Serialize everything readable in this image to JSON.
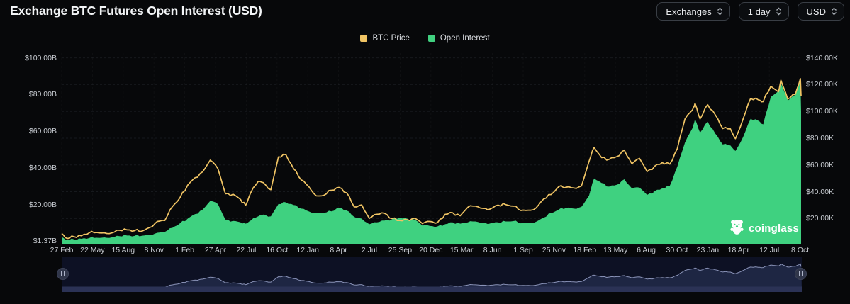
{
  "header": {
    "title": "Exchange BTC Futures Open Interest (USD)",
    "controls": [
      {
        "label": "Exchanges"
      },
      {
        "label": "1 day"
      },
      {
        "label": "USD"
      }
    ]
  },
  "legend": {
    "items": [
      {
        "label": "BTC Price",
        "color": "#F0C464"
      },
      {
        "label": "Open Interest",
        "color": "#41D080"
      }
    ]
  },
  "watermark": {
    "text": "coinglass"
  },
  "colors": {
    "background": "#07080a",
    "btc_price_line": "#F0C464",
    "open_interest_fill": "#3FD180",
    "grid_line": "#24272d",
    "axis_text": "#c8ccd2",
    "navigator_bg": "#0d1124",
    "navigator_fill": "#1e2643",
    "navigator_line": "#8a93b8",
    "navigator_scrollbar": "#2b3255"
  },
  "chart_data": {
    "type": "area",
    "title": "Exchange BTC Futures Open Interest (USD)",
    "legend_position": "top-center",
    "grid": "horizontal-dashed",
    "left_axis": {
      "unit": "USD billions",
      "min": 0,
      "max": 103,
      "tick_labels": [
        "$100.00B",
        "$80.00B",
        "$60.00B",
        "$40.00B",
        "$20.00B",
        "$1.37B"
      ],
      "tick_values": [
        100,
        80,
        60,
        40,
        20,
        1.37
      ]
    },
    "right_axis": {
      "unit": "USD thousands",
      "min": 0,
      "max": 145,
      "tick_labels": [
        "$140.00K",
        "$120.00K",
        "$100.00K",
        "$80.00K",
        "$60.00K",
        "$40.00K",
        "$20.00K"
      ],
      "tick_values": [
        140,
        120,
        100,
        80,
        60,
        40,
        20
      ]
    },
    "x_ticks": [
      "27 Feb",
      "22 May",
      "15 Aug",
      "8 Nov",
      "1 Feb",
      "27 Apr",
      "22 Jul",
      "16 Oct",
      "12 Jan",
      "8 Apr",
      "2 Jul",
      "25 Sep",
      "20 Dec",
      "15 Mar",
      "8 Jun",
      "1 Sep",
      "25 Nov",
      "18 Feb",
      "13 May",
      "6 Aug",
      "30 Oct",
      "23 Jan",
      "18 Apr",
      "12 Jul",
      "8 Oct"
    ],
    "dates": [
      "2020-02-27",
      "2020-03-13",
      "2020-04-01",
      "2020-04-22",
      "2020-05-13",
      "2020-06-03",
      "2020-06-24",
      "2020-07-15",
      "2020-08-05",
      "2020-08-26",
      "2020-09-16",
      "2020-10-07",
      "2020-10-28",
      "2020-11-18",
      "2020-12-09",
      "2020-12-30",
      "2021-01-20",
      "2021-02-10",
      "2021-03-03",
      "2021-03-24",
      "2021-04-14",
      "2021-05-05",
      "2021-05-26",
      "2021-06-16",
      "2021-07-07",
      "2021-07-21",
      "2021-08-04",
      "2021-08-25",
      "2021-09-08",
      "2021-09-29",
      "2021-10-20",
      "2021-11-10",
      "2021-12-01",
      "2021-12-22",
      "2022-01-12",
      "2022-02-02",
      "2022-02-23",
      "2022-03-16",
      "2022-04-06",
      "2022-04-27",
      "2022-05-18",
      "2022-06-08",
      "2022-06-29",
      "2022-07-20",
      "2022-08-10",
      "2022-08-31",
      "2022-09-21",
      "2022-10-12",
      "2022-11-02",
      "2022-11-23",
      "2022-12-14",
      "2023-01-04",
      "2023-01-25",
      "2023-02-15",
      "2023-03-08",
      "2023-03-29",
      "2023-04-19",
      "2023-05-10",
      "2023-05-31",
      "2023-06-21",
      "2023-07-12",
      "2023-08-02",
      "2023-08-23",
      "2023-09-13",
      "2023-10-04",
      "2023-10-25",
      "2023-11-15",
      "2023-12-06",
      "2023-12-27",
      "2024-01-17",
      "2024-02-07",
      "2024-02-28",
      "2024-03-13",
      "2024-04-03",
      "2024-04-24",
      "2024-05-15",
      "2024-06-05",
      "2024-06-26",
      "2024-07-17",
      "2024-08-07",
      "2024-08-28",
      "2024-09-18",
      "2024-10-09",
      "2024-10-30",
      "2024-11-20",
      "2024-12-11",
      "2024-12-18",
      "2025-01-01",
      "2025-01-22",
      "2025-02-12",
      "2025-03-05",
      "2025-03-26",
      "2025-04-09",
      "2025-04-30",
      "2025-05-21",
      "2025-06-11",
      "2025-06-25",
      "2025-07-16",
      "2025-08-06",
      "2025-08-13",
      "2025-09-01",
      "2025-09-22",
      "2025-10-06",
      "2025-10-08"
    ],
    "series": [
      {
        "name": "BTC Price",
        "axis": "right",
        "style": "line",
        "color": "#F0C464",
        "unit": "K USD",
        "values": [
          8.8,
          5.1,
          6.4,
          7.1,
          9.2,
          9.6,
          9.3,
          9.2,
          11.2,
          11.5,
          10.9,
          10.6,
          13.3,
          17.8,
          18.5,
          28.9,
          35.5,
          44.8,
          50.5,
          54.9,
          63.6,
          57.4,
          38.5,
          38.1,
          34.2,
          29.8,
          39.2,
          47.7,
          46.8,
          41.5,
          66.0,
          67.5,
          57.2,
          48.9,
          43.9,
          36.9,
          37.3,
          41.1,
          43.2,
          39.2,
          28.7,
          30.2,
          20.1,
          23.2,
          23.9,
          20.0,
          18.5,
          19.1,
          20.2,
          16.2,
          17.8,
          16.9,
          23.1,
          24.3,
          22.0,
          28.4,
          29.3,
          27.6,
          27.2,
          30.0,
          30.4,
          29.2,
          26.0,
          26.2,
          27.8,
          34.5,
          37.9,
          43.8,
          43.4,
          42.8,
          44.3,
          62.5,
          73.1,
          65.5,
          64.2,
          66.2,
          71.1,
          60.8,
          64.9,
          55.0,
          59.0,
          61.7,
          60.6,
          72.3,
          94.3,
          101.2,
          106.1,
          94.4,
          105.1,
          97.5,
          87.2,
          86.9,
          79.6,
          94.2,
          109.7,
          108.7,
          107.3,
          118.8,
          114.6,
          123.3,
          109.2,
          112.8,
          124.5,
          111.5
        ]
      },
      {
        "name": "Open Interest",
        "axis": "left",
        "style": "area",
        "color": "#3FD180",
        "unit": "B USD",
        "values": [
          3.4,
          2.0,
          2.2,
          2.5,
          2.9,
          3.1,
          3.3,
          3.3,
          4.0,
          4.3,
          4.1,
          4.2,
          4.8,
          5.8,
          6.3,
          8.5,
          11.0,
          13.5,
          16.0,
          18.5,
          23.2,
          21.5,
          13.0,
          12.3,
          11.5,
          10.8,
          12.5,
          14.8,
          15.8,
          14.8,
          21.5,
          22.4,
          21.0,
          19.0,
          17.5,
          16.5,
          16.8,
          17.5,
          19.5,
          18.0,
          14.5,
          13.5,
          10.5,
          11.5,
          12.5,
          13.2,
          14.0,
          13.5,
          13.0,
          9.8,
          9.5,
          9.3,
          10.5,
          11.5,
          10.8,
          11.5,
          12.0,
          11.2,
          11.0,
          11.5,
          12.0,
          12.2,
          11.0,
          11.2,
          11.8,
          14.0,
          16.5,
          18.5,
          19.5,
          19.0,
          20.0,
          26.0,
          35.5,
          33.0,
          31.0,
          32.0,
          35.0,
          30.0,
          30.5,
          26.5,
          28.5,
          30.0,
          31.5,
          42.0,
          55.0,
          63.0,
          68.0,
          60.5,
          66.5,
          60.0,
          54.0,
          53.5,
          50.5,
          58.0,
          68.0,
          67.0,
          65.0,
          80.0,
          83.0,
          87.5,
          78.0,
          81.0,
          89.5,
          72.0
        ]
      }
    ],
    "navigator": {
      "shows": "BTC Price",
      "range_start": "2020-02-27",
      "range_end": "2025-10-08"
    }
  }
}
